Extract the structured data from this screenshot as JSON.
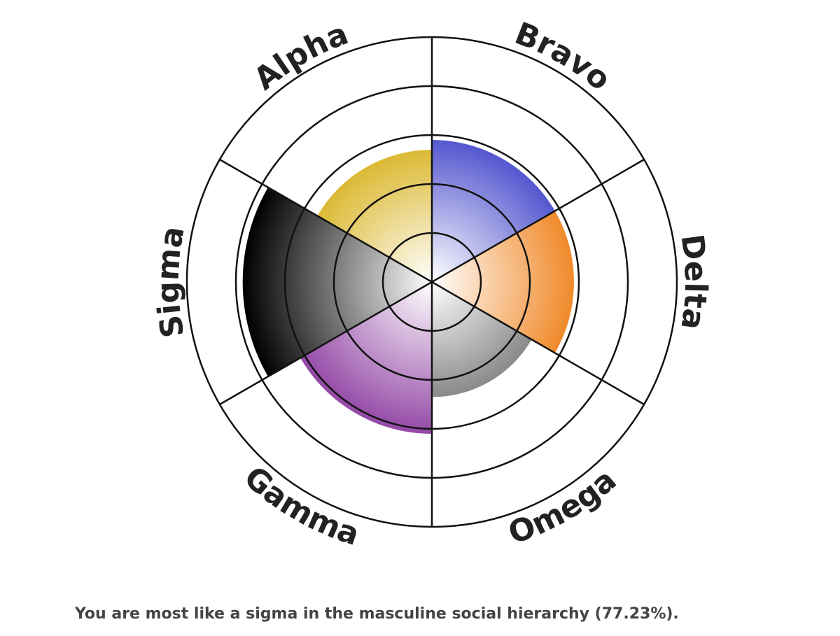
{
  "chart_data": {
    "type": "polar-area",
    "categories": [
      "Bravo",
      "Delta",
      "Omega",
      "Gamma",
      "Sigma",
      "Alpha"
    ],
    "values": [
      58,
      58,
      47,
      62,
      77.23,
      54
    ],
    "colors": [
      "#5457cf",
      "#f08a2a",
      "#8a8a8a",
      "#9449a6",
      "#000000",
      "#dcb934"
    ],
    "rlim": [
      0,
      100
    ],
    "rticks": [
      20,
      40,
      60,
      80,
      100
    ],
    "result_text": "You are most like a sigma in the masculine social hierarchy (77.23%)."
  }
}
